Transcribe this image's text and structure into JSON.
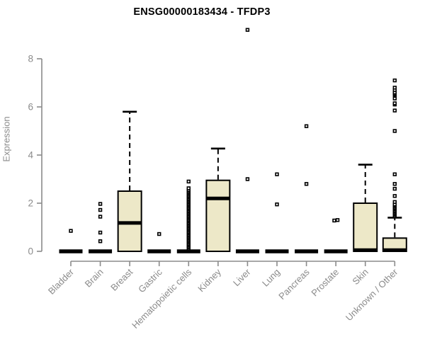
{
  "chart_data": {
    "type": "boxplot",
    "title": "ENSG00000183434 - TFDP3",
    "ylabel": "Expression",
    "xlabel": "",
    "ylim": [
      0,
      8
    ],
    "yticks": [
      0,
      2,
      4,
      6,
      8
    ],
    "grid": false,
    "legend": "none",
    "categories": [
      "Bladder",
      "Brain",
      "Breast",
      "Gastric",
      "Hematopoietic cells",
      "Kidney",
      "Liver",
      "Lung",
      "Pancreas",
      "Prostate",
      "Skin",
      "Unknown / Other"
    ],
    "series": [
      {
        "name": "Bladder",
        "whisker_low": 0,
        "q1": 0,
        "median": 0,
        "q3": 0,
        "whisker_high": 0,
        "outliers": [
          0.85
        ]
      },
      {
        "name": "Brain",
        "whisker_low": 0,
        "q1": 0,
        "median": 0,
        "q3": 0,
        "whisker_high": 0,
        "outliers": [
          0.42,
          0.78,
          1.44,
          1.72,
          1.97
        ]
      },
      {
        "name": "Breast",
        "whisker_low": 0,
        "q1": 0,
        "median": 1.18,
        "q3": 2.5,
        "whisker_high": 5.8,
        "outliers": []
      },
      {
        "name": "Gastric",
        "whisker_low": 0,
        "q1": 0,
        "median": 0,
        "q3": 0,
        "whisker_high": 0,
        "outliers": [
          0.72
        ]
      },
      {
        "name": "Hematopoietic cells",
        "whisker_low": 0,
        "q1": 0,
        "median": 0,
        "q3": 0,
        "whisker_high": 0,
        "outliers": [
          0.1,
          0.15,
          0.2,
          0.25,
          0.3,
          0.35,
          0.4,
          0.45,
          0.5,
          0.55,
          0.6,
          0.65,
          0.7,
          0.75,
          0.8,
          0.85,
          0.9,
          0.95,
          1.0,
          1.05,
          1.1,
          1.15,
          1.2,
          1.25,
          1.3,
          1.35,
          1.4,
          1.45,
          1.5,
          1.55,
          1.6,
          1.65,
          1.7,
          1.75,
          1.8,
          1.85,
          1.9,
          1.95,
          2.0,
          2.05,
          2.1,
          2.15,
          2.2,
          2.25,
          2.3,
          2.35,
          2.4,
          2.45,
          2.5,
          2.55,
          2.62,
          2.9
        ]
      },
      {
        "name": "Kidney",
        "whisker_low": 0,
        "q1": 0,
        "median": 2.2,
        "q3": 2.95,
        "whisker_high": 4.27,
        "outliers": []
      },
      {
        "name": "Liver",
        "whisker_low": 0,
        "q1": 0,
        "median": 0,
        "q3": 0,
        "whisker_high": 0,
        "outliers": [
          3.0,
          9.2
        ]
      },
      {
        "name": "Lung",
        "whisker_low": 0,
        "q1": 0,
        "median": 0,
        "q3": 0,
        "whisker_high": 0,
        "outliers": [
          1.95,
          3.2
        ]
      },
      {
        "name": "Pancreas",
        "whisker_low": 0,
        "q1": 0,
        "median": 0,
        "q3": 0,
        "whisker_high": 0,
        "outliers": [
          2.8,
          5.2
        ]
      },
      {
        "name": "Prostate",
        "whisker_low": 0,
        "q1": 0,
        "median": 0,
        "q3": 0,
        "whisker_high": 0,
        "outliers": [
          1.28,
          1.3
        ],
        "outliers_dx": [
          -2.2,
          2.4
        ]
      },
      {
        "name": "Skin",
        "whisker_low": 0,
        "q1": 0,
        "median": 0.05,
        "q3": 2.0,
        "whisker_high": 3.6,
        "outliers": []
      },
      {
        "name": "Unknown / Other",
        "whisker_low": 0,
        "q1": 0,
        "median": 0.05,
        "q3": 0.55,
        "whisker_high": 1.4,
        "outliers": [
          1.45,
          1.5,
          1.55,
          1.6,
          1.65,
          1.7,
          1.75,
          1.8,
          1.85,
          1.9,
          1.95,
          2.05,
          2.3,
          2.6,
          2.8,
          3.2,
          5.0,
          5.85,
          6.1,
          6.15,
          6.35,
          6.5,
          6.55,
          6.6,
          6.7,
          6.8,
          7.1
        ]
      }
    ],
    "colors": {
      "box_fill": "#EDE8C8",
      "box_stroke": "#000000",
      "median": "#000000",
      "outlier_stroke": "#000000",
      "axis": "#8B8B8B",
      "tick_label": "#8B8B8B",
      "title": "#000000",
      "background": "#FFFFFF"
    }
  }
}
